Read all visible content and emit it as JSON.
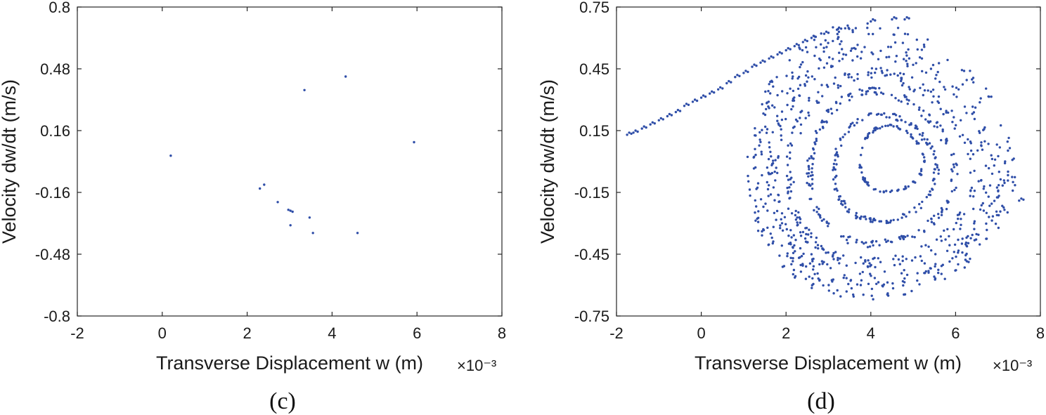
{
  "colors": {
    "points": "#2f4ea8",
    "axes": "#262626"
  },
  "chart_data": [
    {
      "type": "scatter",
      "panel_label": "(c)",
      "xlabel": "Transverse  Displacement  w (m)",
      "x_exponent": "×10⁻³",
      "ylabel": "Velocity  dw/dt  (m/s)",
      "xlim": [
        -2,
        8
      ],
      "ylim": [
        -0.8,
        0.8
      ],
      "xticks": [
        "-2",
        "0",
        "2",
        "4",
        "6",
        "8"
      ],
      "yticks": [
        "-0.8",
        "-0.48",
        "-0.16",
        "0.16",
        "0.48",
        "0.8"
      ],
      "grid": false,
      "points": [
        [
          0.2,
          0.03
        ],
        [
          3.35,
          0.37
        ],
        [
          4.32,
          0.44
        ],
        [
          5.93,
          0.1
        ],
        [
          2.3,
          -0.14
        ],
        [
          2.4,
          -0.12
        ],
        [
          2.72,
          -0.21
        ],
        [
          2.97,
          -0.25
        ],
        [
          3.02,
          -0.255
        ],
        [
          3.07,
          -0.26
        ],
        [
          3.47,
          -0.29
        ],
        [
          3.02,
          -0.33
        ],
        [
          3.55,
          -0.37
        ],
        [
          4.6,
          -0.37
        ]
      ]
    },
    {
      "type": "scatter",
      "panel_label": "(d)",
      "xlabel": "Transverse  Displacement  w (m)",
      "x_exponent": "×10⁻³",
      "ylabel": "Velocity  dw/dt  (m/s)",
      "xlim": [
        -2,
        8
      ],
      "ylim": [
        -0.75,
        0.75
      ],
      "xticks": [
        "-2",
        "0",
        "2",
        "4",
        "6",
        "8"
      ],
      "yticks": [
        "-0.75",
        "-0.45",
        "-0.15",
        "0.15",
        "0.45",
        "0.75"
      ],
      "grid": false,
      "description": "chaotic attractor: spiral bands",
      "spiral_bands": [
        {
          "cx": 3.9,
          "cy": -0.05,
          "rx": 3.0,
          "ry": 0.63,
          "n": 300,
          "spread": 0.07
        },
        {
          "cx": 3.95,
          "cy": -0.06,
          "rx": 2.6,
          "ry": 0.55,
          "n": 260,
          "spread": 0.06
        },
        {
          "cx": 4.0,
          "cy": -0.07,
          "rx": 2.2,
          "ry": 0.46,
          "n": 230,
          "spread": 0.06
        },
        {
          "cx": 4.05,
          "cy": -0.06,
          "rx": 1.7,
          "ry": 0.37,
          "n": 200,
          "spread": 0.05
        },
        {
          "cx": 4.2,
          "cy": -0.05,
          "rx": 1.2,
          "ry": 0.26,
          "n": 150,
          "spread": 0.05
        },
        {
          "cx": 4.4,
          "cy": 0.0,
          "rx": 0.75,
          "ry": 0.16,
          "n": 90,
          "spread": 0.04
        }
      ],
      "tail_points": [
        [
          -1.75,
          0.13
        ],
        [
          -1.6,
          0.14
        ],
        [
          -1.4,
          0.16
        ],
        [
          -1.2,
          0.18
        ],
        [
          -1.0,
          0.2
        ],
        [
          -0.8,
          0.22
        ],
        [
          -0.6,
          0.24
        ],
        [
          -0.4,
          0.27
        ],
        [
          -0.2,
          0.29
        ],
        [
          0.0,
          0.31
        ],
        [
          0.2,
          0.33
        ],
        [
          0.4,
          0.35
        ],
        [
          0.6,
          0.38
        ],
        [
          0.8,
          0.41
        ],
        [
          1.0,
          0.43
        ],
        [
          1.2,
          0.46
        ],
        [
          1.4,
          0.48
        ],
        [
          1.6,
          0.5
        ],
        [
          1.8,
          0.52
        ],
        [
          2.0,
          0.54
        ],
        [
          2.2,
          0.56
        ],
        [
          2.4,
          0.58
        ],
        [
          2.6,
          0.6
        ],
        [
          2.9,
          0.62
        ],
        [
          3.2,
          0.64
        ],
        [
          4.0,
          0.68
        ],
        [
          4.5,
          0.69
        ],
        [
          4.8,
          0.69
        ],
        [
          7.5,
          -0.19
        ]
      ]
    }
  ]
}
